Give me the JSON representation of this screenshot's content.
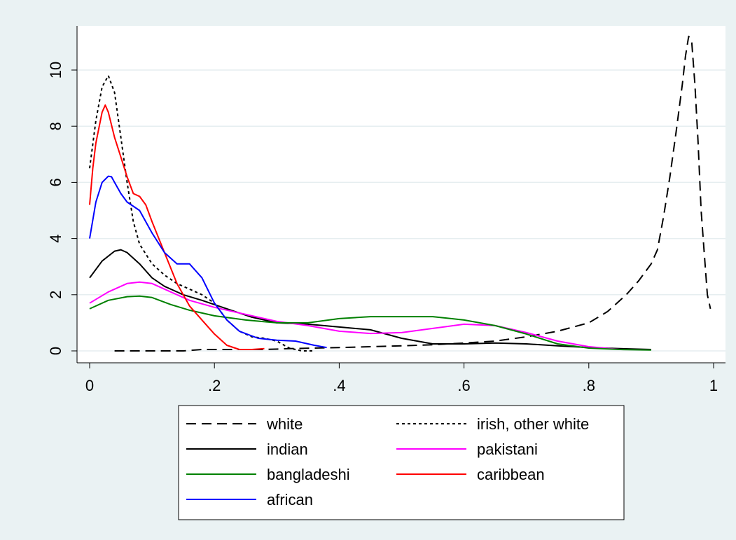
{
  "chart_data": {
    "type": "line",
    "title": "",
    "xlabel": "",
    "ylabel": "",
    "xlim": [
      0,
      1
    ],
    "ylim": [
      0,
      12
    ],
    "xticks": [
      0,
      0.2,
      0.4,
      0.6,
      0.8,
      1
    ],
    "xtick_labels": [
      "0",
      ".2",
      ".4",
      ".6",
      ".8",
      "1"
    ],
    "yticks": [
      0,
      2,
      4,
      6,
      8,
      10
    ],
    "ytick_labels": [
      "0",
      "2",
      "4",
      "6",
      "8",
      "10"
    ],
    "grid": "horizontal",
    "legend_position": "bottom",
    "colors": {
      "page_background": "#eaf2f3",
      "plot_background": "#ffffff",
      "gridline": "#e6eef0"
    },
    "series": [
      {
        "name": "white",
        "color": "#000000",
        "dash": "dashed",
        "x": [
          0.04,
          0.1,
          0.15,
          0.18,
          0.22,
          0.28,
          0.32,
          0.36,
          0.4,
          0.45,
          0.5,
          0.55,
          0.6,
          0.65,
          0.7,
          0.75,
          0.8,
          0.83,
          0.86,
          0.88,
          0.9,
          0.91,
          0.92,
          0.93,
          0.94,
          0.95,
          0.955,
          0.96,
          0.965,
          0.97,
          0.975,
          0.98,
          0.985,
          0.99,
          0.995
        ],
        "y": [
          0.0,
          0.0,
          0.0,
          0.05,
          0.05,
          0.05,
          0.08,
          0.1,
          0.12,
          0.15,
          0.18,
          0.22,
          0.28,
          0.35,
          0.5,
          0.7,
          1.0,
          1.4,
          2.0,
          2.5,
          3.1,
          3.6,
          4.8,
          6.2,
          7.8,
          9.5,
          10.5,
          11.2,
          11.0,
          9.5,
          7.5,
          5.0,
          3.5,
          2.0,
          1.5
        ]
      },
      {
        "name": "irish, other white",
        "color": "#000000",
        "dash": "dotted",
        "x": [
          0.0,
          0.01,
          0.02,
          0.03,
          0.04,
          0.05,
          0.06,
          0.07,
          0.08,
          0.1,
          0.12,
          0.14,
          0.16,
          0.18,
          0.2,
          0.22,
          0.24,
          0.26,
          0.28,
          0.3,
          0.32,
          0.34,
          0.36
        ],
        "y": [
          6.5,
          8.2,
          9.4,
          9.8,
          9.2,
          7.6,
          6.0,
          4.6,
          3.8,
          3.1,
          2.7,
          2.4,
          2.2,
          2.0,
          1.7,
          1.1,
          0.7,
          0.5,
          0.45,
          0.35,
          0.1,
          0.0,
          0.0
        ]
      },
      {
        "name": "indian",
        "color": "#000000",
        "dash": "solid",
        "x": [
          0.0,
          0.02,
          0.04,
          0.05,
          0.06,
          0.08,
          0.1,
          0.12,
          0.15,
          0.18,
          0.22,
          0.26,
          0.3,
          0.35,
          0.4,
          0.45,
          0.5,
          0.55,
          0.6,
          0.65,
          0.7,
          0.75,
          0.8,
          0.85,
          0.9
        ],
        "y": [
          2.6,
          3.2,
          3.55,
          3.6,
          3.5,
          3.1,
          2.6,
          2.3,
          2.0,
          1.8,
          1.5,
          1.2,
          1.0,
          0.95,
          0.85,
          0.75,
          0.45,
          0.25,
          0.25,
          0.28,
          0.25,
          0.18,
          0.12,
          0.08,
          0.05
        ]
      },
      {
        "name": "pakistani",
        "color": "#ff00ff",
        "dash": "solid",
        "x": [
          0.0,
          0.03,
          0.06,
          0.08,
          0.1,
          0.13,
          0.16,
          0.2,
          0.25,
          0.3,
          0.35,
          0.4,
          0.45,
          0.5,
          0.55,
          0.6,
          0.65,
          0.7,
          0.75,
          0.8,
          0.85
        ],
        "y": [
          1.7,
          2.1,
          2.4,
          2.45,
          2.4,
          2.1,
          1.8,
          1.55,
          1.3,
          1.05,
          0.9,
          0.7,
          0.62,
          0.65,
          0.8,
          0.95,
          0.9,
          0.65,
          0.35,
          0.15,
          0.05
        ]
      },
      {
        "name": "bangladeshi",
        "color": "#008000",
        "dash": "solid",
        "x": [
          0.0,
          0.03,
          0.06,
          0.08,
          0.1,
          0.13,
          0.16,
          0.2,
          0.25,
          0.3,
          0.35,
          0.4,
          0.45,
          0.5,
          0.55,
          0.6,
          0.65,
          0.7,
          0.75,
          0.8,
          0.85,
          0.9
        ],
        "y": [
          1.5,
          1.8,
          1.93,
          1.95,
          1.9,
          1.65,
          1.45,
          1.25,
          1.1,
          1.0,
          1.0,
          1.15,
          1.22,
          1.22,
          1.22,
          1.1,
          0.9,
          0.6,
          0.25,
          0.1,
          0.05,
          0.03
        ]
      },
      {
        "name": "caribbean",
        "color": "#ff0000",
        "dash": "solid",
        "x": [
          0.0,
          0.005,
          0.01,
          0.02,
          0.025,
          0.03,
          0.04,
          0.05,
          0.06,
          0.07,
          0.075,
          0.08,
          0.09,
          0.1,
          0.12,
          0.14,
          0.16,
          0.18,
          0.2,
          0.22,
          0.24,
          0.26,
          0.28
        ],
        "y": [
          5.2,
          6.5,
          7.4,
          8.5,
          8.75,
          8.5,
          7.6,
          6.9,
          6.2,
          5.6,
          5.55,
          5.5,
          5.2,
          4.6,
          3.5,
          2.4,
          1.6,
          1.1,
          0.6,
          0.2,
          0.05,
          0.05,
          0.08
        ]
      },
      {
        "name": "african",
        "color": "#0000ff",
        "dash": "solid",
        "x": [
          0.0,
          0.01,
          0.02,
          0.03,
          0.035,
          0.04,
          0.05,
          0.06,
          0.08,
          0.1,
          0.12,
          0.14,
          0.16,
          0.18,
          0.2,
          0.22,
          0.24,
          0.27,
          0.3,
          0.33,
          0.36,
          0.38
        ],
        "y": [
          4.0,
          5.3,
          6.0,
          6.22,
          6.2,
          6.0,
          5.6,
          5.3,
          5.0,
          4.2,
          3.5,
          3.1,
          3.1,
          2.6,
          1.7,
          1.1,
          0.7,
          0.45,
          0.38,
          0.35,
          0.2,
          0.12
        ]
      }
    ]
  }
}
